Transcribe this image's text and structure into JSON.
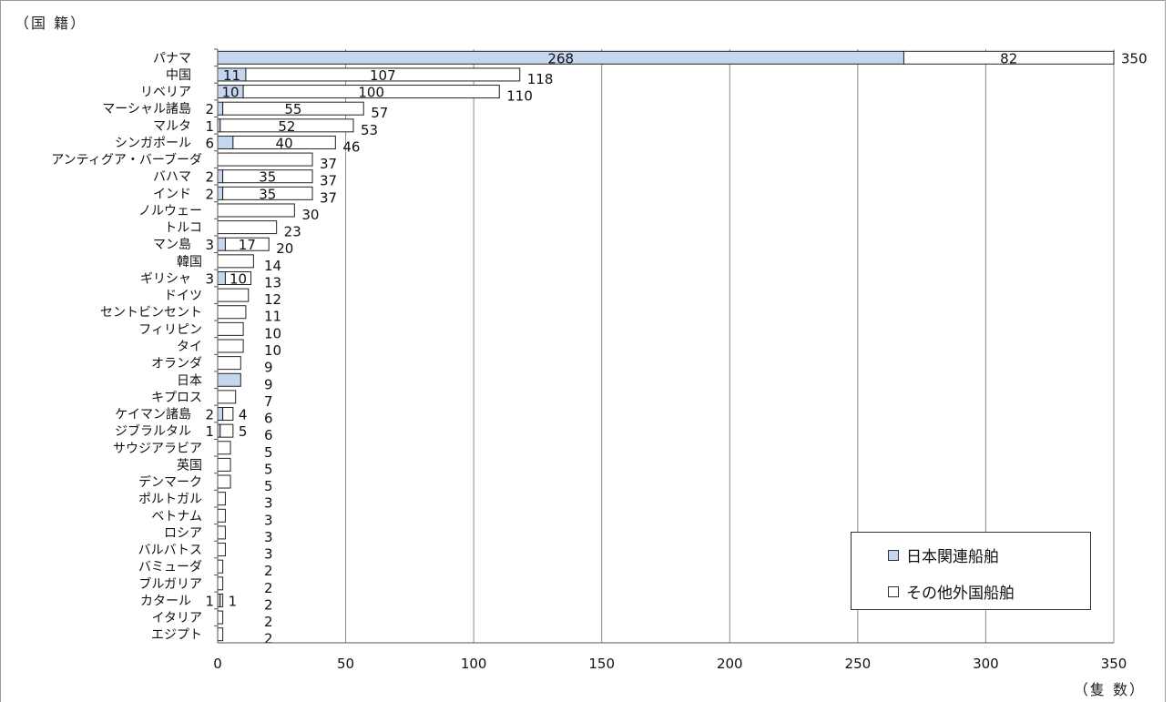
{
  "chart_data": {
    "type": "bar",
    "orientation": "horizontal",
    "stacked": true,
    "y_axis_title": "（国 籍）",
    "x_axis_unit": "（隻 数）",
    "xlim": [
      0,
      350
    ],
    "x_ticks": [
      "0",
      "50",
      "100",
      "150",
      "200",
      "250",
      "300",
      "350"
    ],
    "grid": "vertical",
    "legend_position": "bottom-right",
    "categories": [
      "パナマ",
      "中国",
      "リベリア",
      "マーシャル諸島",
      "マルタ",
      "シンガポール",
      "アンティグア・バーブーダ",
      "バハマ",
      "インド",
      "ノルウェー",
      "トルコ",
      "マン島",
      "韓国",
      "ギリシャ",
      "ドイツ",
      "セントビンセント",
      "フィリピン",
      "タイ",
      "オランダ",
      "日本",
      "キプロス",
      "ケイマン諸島",
      "ジブラルタル",
      "サウジアラビア",
      "英国",
      "デンマーク",
      "ポルトガル",
      "ベトナム",
      "ロシア",
      "バルバトス",
      "バミューダ",
      "ブルガリア",
      "カタール",
      "イタリア",
      "エジプト"
    ],
    "series": [
      {
        "name": "日本関連船舶",
        "color": "#c5d6ee",
        "values": [
          268,
          11,
          10,
          2,
          1,
          6,
          0,
          2,
          2,
          0,
          0,
          3,
          0,
          3,
          0,
          0,
          0,
          0,
          0,
          9,
          0,
          2,
          1,
          0,
          0,
          0,
          0,
          0,
          0,
          0,
          0,
          0,
          1,
          0,
          0
        ],
        "labels": [
          "268",
          "11",
          "10",
          "2",
          "1",
          "6",
          "",
          "2",
          "2",
          "",
          "",
          "3",
          "",
          "3",
          "",
          "",
          "",
          "",
          "",
          "",
          "",
          "2",
          "1",
          "",
          "",
          "",
          "",
          "",
          "",
          "",
          "",
          "",
          "1",
          "",
          ""
        ]
      },
      {
        "name": "その他外国船舶",
        "color": "#ffffff",
        "values": [
          82,
          107,
          100,
          55,
          52,
          40,
          37,
          35,
          35,
          30,
          23,
          17,
          14,
          10,
          12,
          11,
          10,
          10,
          9,
          0,
          7,
          4,
          5,
          5,
          5,
          5,
          3,
          3,
          3,
          3,
          2,
          2,
          1,
          2,
          2
        ],
        "labels": [
          "82",
          "107",
          "100",
          "55",
          "52",
          "40",
          "",
          "35",
          "35",
          "",
          "",
          "17",
          "",
          "10",
          "",
          "",
          "",
          "",
          "",
          "",
          "",
          "4",
          "5",
          "",
          "",
          "",
          "",
          "",
          "",
          "",
          "",
          "",
          "1",
          "",
          ""
        ]
      }
    ],
    "totals": [
      "350",
      "118",
      "110",
      "57",
      "53",
      "46",
      "37",
      "37",
      "37",
      "30",
      "23",
      "20",
      "14",
      "13",
      "12",
      "11",
      "10",
      "10",
      "9",
      "9",
      "7",
      "6",
      "6",
      "5",
      "5",
      "5",
      "3",
      "3",
      "3",
      "3",
      "2",
      "2",
      "2",
      "2",
      "2"
    ]
  },
  "legend": {
    "japan_label": "日本関連船舶",
    "other_label": "その他外国船舶"
  }
}
